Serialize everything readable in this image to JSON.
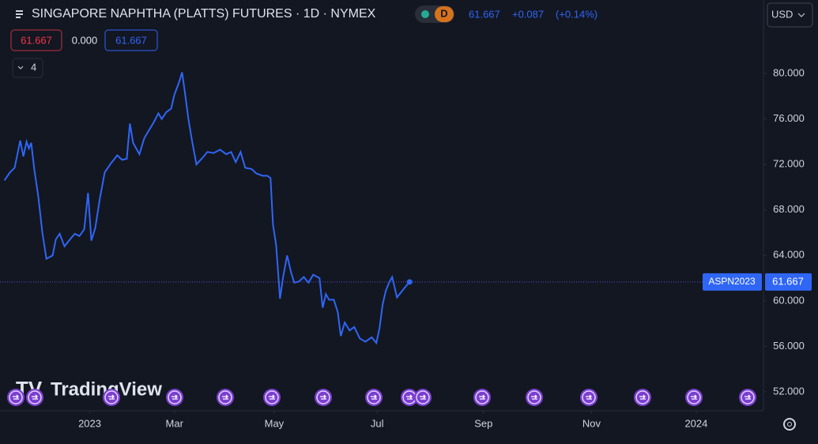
{
  "chart_data": {
    "type": "line",
    "title": "SINGAPORE NAPHTHA (PLATTS) FUTURES · 1D · NYMEX",
    "interval_badge": "D",
    "change": {
      "value": 0.087,
      "label": "+0.087"
    },
    "change_pct": {
      "value": 0.14,
      "label": "(+0.14%)"
    },
    "legend_change": {
      "value": 0,
      "label": "0.000"
    },
    "hidden_indicators": 4,
    "currency": "USD",
    "watermark": "TradingView",
    "series": [
      {
        "name": "ASPN2023",
        "color": "#2f66f5",
        "x": [
          -51.3,
          -48.0,
          -45.2,
          -41.8,
          -39.9,
          -38.0,
          -36.6,
          -35.2,
          -33.3,
          -30.9,
          -28.5,
          -26.1,
          -22.3,
          -20.4,
          -18.1,
          -15.2,
          -11.9,
          -9.0,
          -6.2,
          -3.3,
          -1.0,
          1.0,
          3.3,
          6.2,
          9.0,
          12.8,
          16.6,
          19.5,
          22.3,
          24.2,
          26.1,
          28.0,
          29.9,
          32.8,
          35.6,
          38.5,
          41.3,
          43.3,
          46.1,
          49.0,
          50.9,
          53.7,
          55.6,
          57.5,
          59.4,
          61.3,
          64.2,
          68.0,
          70.8,
          74.6,
          78.4,
          82.2,
          85.1,
          87.9,
          90.8,
          93.6,
          97.4,
          100.3,
          104.1,
          106.9,
          108.8,
          110.3,
          112.2,
          114.5,
          116.4,
          118.8,
          121.2,
          123.1,
          125.9,
          128.8,
          131.7,
          134.5,
          138.3,
          140.2,
          142.1,
          144.0,
          146.9,
          149.3,
          151.1,
          153.5,
          156.4,
          159.2,
          162.5,
          165.9,
          169.7,
          172.5,
          174.4,
          176.3,
          178.2,
          180.1,
          182.0,
          184.9,
          188.7,
          192.5
        ],
        "values": [
          70.6,
          71.3,
          71.7,
          74.1,
          72.7,
          74.0,
          73.4,
          73.9,
          71.5,
          69.1,
          66.0,
          63.7,
          64.0,
          65.4,
          65.9,
          64.8,
          65.4,
          65.9,
          65.7,
          66.3,
          69.5,
          65.3,
          66.4,
          69.1,
          71.3,
          72.1,
          72.8,
          72.4,
          72.5,
          75.6,
          73.9,
          73.4,
          72.9,
          74.3,
          75.0,
          75.7,
          76.5,
          76.0,
          76.6,
          76.9,
          78.1,
          79.2,
          80.1,
          78.1,
          76.0,
          74.3,
          72.0,
          72.6,
          73.1,
          73.0,
          73.3,
          72.9,
          73.1,
          72.2,
          73.1,
          71.7,
          71.6,
          71.2,
          71.0,
          71.0,
          70.8,
          66.7,
          64.9,
          60.2,
          62.1,
          64.0,
          62.5,
          61.6,
          61.7,
          62.1,
          61.6,
          62.3,
          62.0,
          59.4,
          60.6,
          60.1,
          60.1,
          59.0,
          56.9,
          58.1,
          57.4,
          57.7,
          56.7,
          56.4,
          56.8,
          56.3,
          57.6,
          59.7,
          60.9,
          61.6,
          62.1,
          60.3,
          61.0,
          61.667
        ]
      }
    ],
    "xlim": [
      -54,
      405
    ],
    "xticks": [
      {
        "value": 0,
        "label": "2023"
      },
      {
        "value": 51,
        "label": "Mar"
      },
      {
        "value": 111,
        "label": "May"
      },
      {
        "value": 173,
        "label": "Jul"
      },
      {
        "value": 237,
        "label": "Sep"
      },
      {
        "value": 302,
        "label": "Nov"
      },
      {
        "value": 365,
        "label": "2024"
      }
    ],
    "ylim": [
      50.33,
      84.03
    ],
    "yticks": [
      {
        "value": 52,
        "label": "52.000"
      },
      {
        "value": 56,
        "label": "56.000"
      },
      {
        "value": 60,
        "label": "60.000"
      },
      {
        "value": 64,
        "label": "64.000"
      },
      {
        "value": 68,
        "label": "68.000"
      },
      {
        "value": 72,
        "label": "72.000"
      },
      {
        "value": 76,
        "label": "76.000"
      },
      {
        "value": 80,
        "label": "80.000"
      }
    ],
    "grid": false
  }
}
